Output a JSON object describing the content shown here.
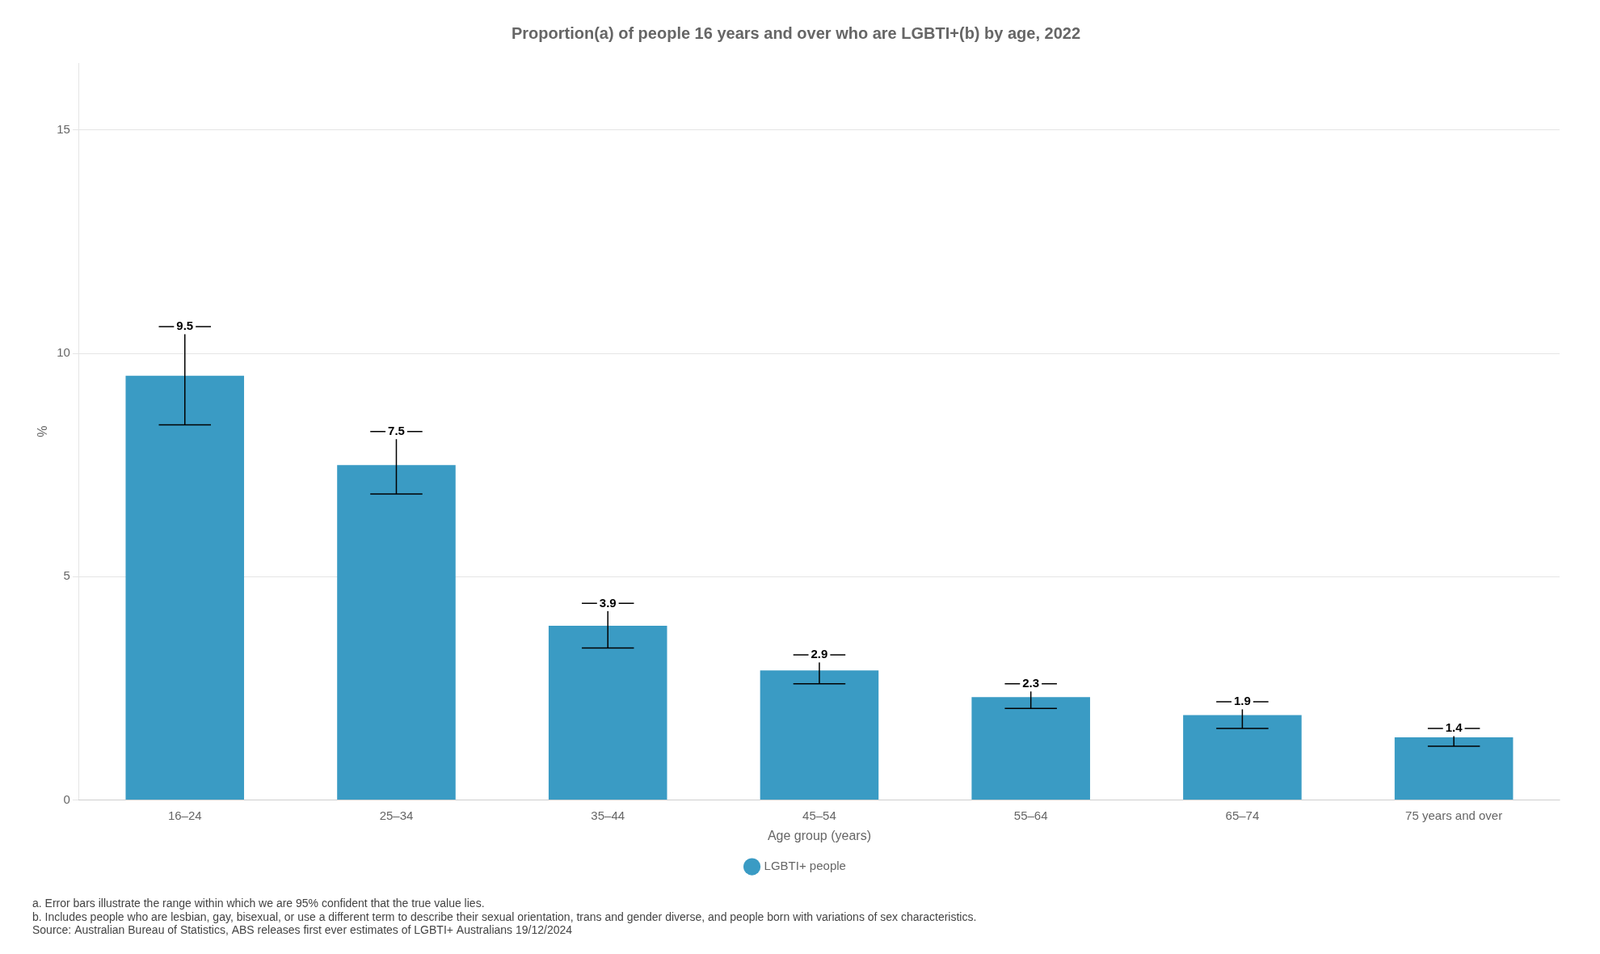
{
  "chart_data": {
    "type": "bar",
    "title": "Proportion(a) of people 16 years and over who are LGBTI+(b) by age, 2022",
    "categories": [
      "16–24",
      "25–34",
      "35–44",
      "45–54",
      "55–64",
      "65–74",
      "75 years and over"
    ],
    "series": [
      {
        "name": "LGBTI+ people",
        "color": "#3a9bc4",
        "values": [
          9.5,
          7.5,
          3.9,
          2.9,
          2.3,
          1.9,
          1.4
        ],
        "error_upper": [
          1.1,
          0.75,
          0.5,
          0.35,
          0.3,
          0.3,
          0.2
        ],
        "error_lower": [
          1.1,
          0.65,
          0.5,
          0.3,
          0.25,
          0.3,
          0.2
        ]
      }
    ],
    "xlabel": "Age group (years)",
    "ylabel": "%",
    "ylim": [
      0,
      16.5
    ],
    "yticks": [
      0,
      5,
      10,
      15
    ],
    "grid": true,
    "legend": "bottom",
    "data_labels": true,
    "notes": [
      "a. Error bars illustrate the range within which we are 95% confident that the true value lies.",
      "b. Includes people who are lesbian, gay, bisexual, or use a different term to describe their sexual orientation, trans and gender diverse, and people born with variations of sex characteristics."
    ],
    "source": "Source: Australian Bureau of Statistics, ABS releases first ever estimates of LGBTI+ Australians 19/12/2024"
  }
}
